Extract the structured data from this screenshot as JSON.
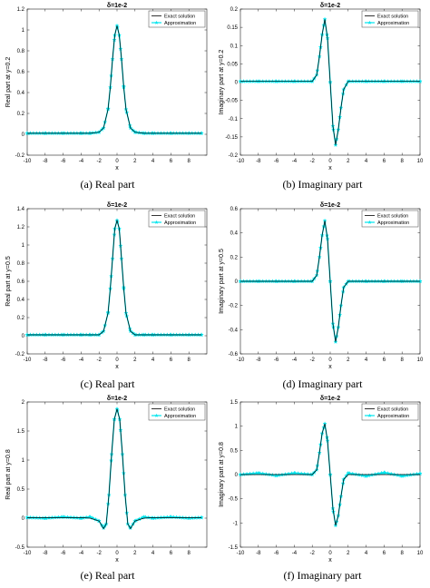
{
  "chart_data": [
    {
      "type": "line",
      "title": "δ=1e-2",
      "xlabel": "x",
      "ylabel": "Real part at y=0.2",
      "xlim": [
        -10,
        10
      ],
      "ylim": [
        -0.2,
        1.2
      ],
      "xticks": [
        -10,
        -8,
        -6,
        -4,
        -2,
        0,
        2,
        4,
        6,
        8
      ],
      "xtick_labels": [
        "-10",
        "-8",
        "-6",
        "-4",
        "-2",
        "0",
        "2",
        "4",
        "6",
        "8"
      ],
      "yticks": [
        -0.2,
        0,
        0.2,
        0.4,
        0.6,
        0.8,
        1,
        1.2
      ],
      "ytick_labels": [
        "-0.2",
        "0",
        "0.2",
        "0.4",
        "0.6",
        "0.8",
        "1",
        "1.2"
      ],
      "legend_position": "top-right",
      "series": [
        {
          "name": "Exact solution",
          "color": "#000000",
          "style": "solid",
          "x": [
            -10,
            -8,
            -6,
            -4,
            -3,
            -2,
            -1.5,
            -1,
            -0.75,
            -0.5,
            -0.25,
            0,
            0.25,
            0.5,
            0.75,
            1,
            1.5,
            2,
            3,
            4,
            6,
            8,
            9.4
          ],
          "y": [
            0.01,
            0.01,
            0.01,
            0.01,
            0.01,
            0.02,
            0.06,
            0.24,
            0.45,
            0.72,
            0.95,
            1.04,
            0.95,
            0.72,
            0.45,
            0.24,
            0.06,
            0.02,
            0.01,
            0.01,
            0.01,
            0.01,
            0.01
          ]
        },
        {
          "name": "Approximation",
          "color": "#00e5ee",
          "style": "solid-star",
          "x": [
            -10,
            -8,
            -6,
            -4,
            -3,
            -2,
            -1.5,
            -1,
            -0.75,
            -0.5,
            -0.25,
            0,
            0.25,
            0.5,
            0.75,
            1,
            1.5,
            2,
            3,
            4,
            6,
            8,
            9.4
          ],
          "y": [
            0.01,
            0.01,
            0.01,
            0.01,
            0.01,
            0.02,
            0.06,
            0.24,
            0.45,
            0.72,
            0.95,
            1.04,
            0.95,
            0.72,
            0.45,
            0.24,
            0.06,
            0.02,
            0.01,
            0.01,
            0.01,
            0.01,
            0.01
          ]
        }
      ],
      "caption": "(a) Real part"
    },
    {
      "type": "line",
      "title": "δ=1e-2",
      "xlabel": "x",
      "ylabel": "Imaginary part at y=0.2",
      "xlim": [
        -10,
        10
      ],
      "ylim": [
        -0.2,
        0.2
      ],
      "xticks": [
        -10,
        -8,
        -6,
        -4,
        -2,
        0,
        2,
        4,
        6,
        8,
        10
      ],
      "xtick_labels": [
        "-10",
        "-8",
        "-6",
        "-4",
        "-2",
        "0",
        "2",
        "4",
        "6",
        "8",
        "10"
      ],
      "yticks": [
        -0.2,
        -0.15,
        -0.1,
        -0.05,
        0,
        0.05,
        0.1,
        0.15,
        0.2
      ],
      "ytick_labels": [
        "-0.2",
        "-0.15",
        "-0.1",
        "-0.05",
        "0",
        "0.05",
        "0.1",
        "0.15",
        "0.2"
      ],
      "legend_position": "top-right",
      "series": [
        {
          "name": "Exact solution",
          "color": "#000000",
          "style": "solid",
          "x": [
            -10,
            -8,
            -6,
            -4,
            -2,
            -1.5,
            -1.2,
            -0.9,
            -0.6,
            -0.3,
            0,
            0.3,
            0.6,
            0.9,
            1.2,
            1.5,
            2,
            4,
            6,
            8,
            10
          ],
          "y": [
            0.002,
            0.002,
            0.002,
            0.002,
            0.002,
            0.02,
            0.07,
            0.13,
            0.172,
            0.12,
            0.0,
            -0.12,
            -0.172,
            -0.13,
            -0.07,
            -0.02,
            0.002,
            0.002,
            0.002,
            0.002,
            0.002
          ]
        },
        {
          "name": "Approximation",
          "color": "#00e5ee",
          "style": "solid-star",
          "x": [
            -10,
            -8,
            -6,
            -4,
            -2,
            -1.5,
            -1.2,
            -0.9,
            -0.6,
            -0.3,
            0,
            0.3,
            0.6,
            0.9,
            1.2,
            1.5,
            2,
            4,
            6,
            8,
            10
          ],
          "y": [
            0.002,
            0.002,
            0.002,
            0.002,
            0.002,
            0.02,
            0.07,
            0.13,
            0.172,
            0.12,
            0.0,
            -0.12,
            -0.172,
            -0.13,
            -0.07,
            -0.02,
            0.002,
            0.002,
            0.002,
            0.002,
            0.002
          ]
        }
      ],
      "caption": "(b) Imaginary part"
    },
    {
      "type": "line",
      "title": "δ=1e-2",
      "xlabel": "x",
      "ylabel": "Real part at y=0.5",
      "xlim": [
        -10,
        10
      ],
      "ylim": [
        -0.2,
        1.4
      ],
      "xticks": [
        -10,
        -8,
        -6,
        -4,
        -2,
        0,
        2,
        4,
        6,
        8
      ],
      "xtick_labels": [
        "-10",
        "-8",
        "-6",
        "-4",
        "-2",
        "0",
        "2",
        "4",
        "6",
        "8"
      ],
      "yticks": [
        -0.2,
        0,
        0.2,
        0.4,
        0.6,
        0.8,
        1,
        1.2,
        1.4
      ],
      "ytick_labels": [
        "-0.2",
        "0",
        "0.2",
        "0.4",
        "0.6",
        "0.8",
        "1",
        "1.2",
        "1.4"
      ],
      "legend_position": "top-right",
      "series": [
        {
          "name": "Exact solution",
          "color": "#000000",
          "style": "solid",
          "x": [
            -10,
            -8,
            -6,
            -4,
            -3,
            -2,
            -1.5,
            -1,
            -0.75,
            -0.5,
            -0.25,
            0,
            0.25,
            0.5,
            0.75,
            1,
            1.5,
            2,
            3,
            4,
            6,
            8,
            9.4
          ],
          "y": [
            0.01,
            0.01,
            0.01,
            0.01,
            0.01,
            0.01,
            0.05,
            0.25,
            0.52,
            0.85,
            1.18,
            1.27,
            1.18,
            0.85,
            0.52,
            0.25,
            0.05,
            0.01,
            0.01,
            0.01,
            0.01,
            0.01,
            0.01
          ]
        },
        {
          "name": "Approximation",
          "color": "#00e5ee",
          "style": "solid-star",
          "x": [
            -10,
            -8,
            -6,
            -4,
            -3,
            -2,
            -1.5,
            -1,
            -0.75,
            -0.5,
            -0.25,
            0,
            0.25,
            0.5,
            0.75,
            1,
            1.5,
            2,
            3,
            4,
            6,
            8,
            9.4
          ],
          "y": [
            0.01,
            0.01,
            0.01,
            0.01,
            0.01,
            0.01,
            0.05,
            0.25,
            0.52,
            0.85,
            1.18,
            1.27,
            1.18,
            0.85,
            0.52,
            0.25,
            0.05,
            0.01,
            0.01,
            0.01,
            0.01,
            0.01,
            0.01
          ]
        }
      ],
      "caption": "(c) Real part"
    },
    {
      "type": "line",
      "title": "δ=1e-2",
      "xlabel": "x",
      "ylabel": "Imaginary part at y=0.5",
      "xlim": [
        -10,
        10
      ],
      "ylim": [
        -0.6,
        0.6
      ],
      "xticks": [
        -10,
        -8,
        -6,
        -4,
        -2,
        0,
        2,
        4,
        6,
        8,
        10
      ],
      "xtick_labels": [
        "-10",
        "-8",
        "-6",
        "-4",
        "-2",
        "0",
        "2",
        "4",
        "6",
        "8",
        "10"
      ],
      "yticks": [
        -0.6,
        -0.4,
        -0.2,
        0,
        0.2,
        0.4,
        0.6
      ],
      "ytick_labels": [
        "-0.6",
        "-0.4",
        "-0.2",
        "0",
        "0.2",
        "0.4",
        "0.6"
      ],
      "legend_position": "top-right",
      "series": [
        {
          "name": "Exact solution",
          "color": "#000000",
          "style": "solid",
          "x": [
            -10,
            -8,
            -6,
            -4,
            -2,
            -1.5,
            -1.2,
            -0.9,
            -0.6,
            -0.3,
            0,
            0.3,
            0.6,
            0.9,
            1.2,
            1.5,
            2,
            4,
            6,
            8,
            10
          ],
          "y": [
            0.0,
            0.0,
            0.0,
            0.0,
            0.0,
            0.05,
            0.2,
            0.38,
            0.5,
            0.35,
            0.0,
            -0.35,
            -0.5,
            -0.38,
            -0.2,
            -0.05,
            0.0,
            0.0,
            0.0,
            0.0,
            0.0
          ]
        },
        {
          "name": "Approximation",
          "color": "#00e5ee",
          "style": "solid-star",
          "x": [
            -10,
            -8,
            -6,
            -4,
            -2,
            -1.5,
            -1.2,
            -0.9,
            -0.6,
            -0.3,
            0,
            0.3,
            0.6,
            0.9,
            1.2,
            1.5,
            2,
            4,
            6,
            8,
            10
          ],
          "y": [
            0.0,
            0.0,
            0.0,
            0.0,
            0.0,
            0.05,
            0.2,
            0.38,
            0.5,
            0.35,
            0.0,
            -0.35,
            -0.5,
            -0.38,
            -0.2,
            -0.05,
            0.0,
            0.0,
            0.0,
            0.0,
            0.0
          ]
        }
      ],
      "caption": "(d) Imaginary part"
    },
    {
      "type": "line",
      "title": "δ=1e-2",
      "xlabel": "x",
      "ylabel": "Real part at y=0.8",
      "xlim": [
        -10,
        10
      ],
      "ylim": [
        -0.5,
        2
      ],
      "xticks": [
        -10,
        -8,
        -6,
        -4,
        -2,
        0,
        2,
        4,
        6,
        8
      ],
      "xtick_labels": [
        "-10",
        "-8",
        "-6",
        "-4",
        "-2",
        "0",
        "2",
        "4",
        "6",
        "8"
      ],
      "yticks": [
        -0.5,
        0,
        0.5,
        1,
        1.5,
        2
      ],
      "ytick_labels": [
        "-0.5",
        "0",
        "0.5",
        "1",
        "1.5",
        "2"
      ],
      "legend_position": "top-right",
      "series": [
        {
          "name": "Exact solution",
          "color": "#000000",
          "style": "solid",
          "x": [
            -10,
            -8,
            -6,
            -4,
            -3,
            -2,
            -1.5,
            -1.2,
            -0.9,
            -0.6,
            -0.3,
            0,
            0.3,
            0.6,
            0.9,
            1.2,
            1.5,
            2,
            3,
            4,
            6,
            8,
            9.4
          ],
          "y": [
            0.01,
            0.01,
            0.01,
            0.01,
            0.0,
            -0.05,
            -0.18,
            -0.1,
            0.4,
            1.1,
            1.7,
            1.88,
            1.7,
            1.1,
            0.4,
            -0.1,
            -0.18,
            -0.05,
            0.0,
            0.01,
            0.01,
            0.01,
            0.01
          ]
        },
        {
          "name": "Approximation",
          "color": "#00e5ee",
          "style": "solid-star",
          "x": [
            -10,
            -8,
            -6,
            -4,
            -3,
            -2,
            -1.5,
            -1.2,
            -0.9,
            -0.6,
            -0.3,
            0,
            0.3,
            0.6,
            0.9,
            1.2,
            1.5,
            2,
            3,
            4,
            6,
            8,
            9.4
          ],
          "y": [
            0.01,
            0.0,
            0.02,
            0.0,
            0.02,
            -0.05,
            -0.17,
            -0.1,
            0.4,
            1.1,
            1.7,
            1.88,
            1.7,
            1.1,
            0.4,
            -0.1,
            -0.17,
            -0.05,
            0.02,
            0.0,
            0.02,
            0.0,
            0.01
          ]
        }
      ],
      "caption": "(e) Real part"
    },
    {
      "type": "line",
      "title": "δ=1e-2",
      "xlabel": "x",
      "ylabel": "Imaginary part at y=0.8",
      "xlim": [
        -10,
        10
      ],
      "ylim": [
        -1.5,
        1.5
      ],
      "xticks": [
        -10,
        -8,
        -6,
        -4,
        -2,
        0,
        2,
        4,
        6,
        8,
        10
      ],
      "xtick_labels": [
        "-10",
        "-8",
        "-6",
        "-4",
        "-2",
        "0",
        "2",
        "4",
        "6",
        "8",
        "10"
      ],
      "yticks": [
        -1.5,
        -1,
        -0.5,
        0,
        0.5,
        1,
        1.5
      ],
      "ytick_labels": [
        "-1.5",
        "-1",
        "-0.5",
        "0",
        "0.5",
        "1",
        "1.5"
      ],
      "legend_position": "top-right",
      "series": [
        {
          "name": "Exact solution",
          "color": "#000000",
          "style": "solid",
          "x": [
            -10,
            -8,
            -6,
            -4,
            -2,
            -1.5,
            -1.2,
            -0.9,
            -0.6,
            -0.3,
            0,
            0.3,
            0.6,
            0.9,
            1.2,
            1.5,
            2,
            4,
            6,
            8,
            10
          ],
          "y": [
            0.0,
            0.0,
            0.0,
            0.0,
            0.0,
            0.1,
            0.45,
            0.85,
            1.05,
            0.7,
            0.0,
            -0.7,
            -1.05,
            -0.85,
            -0.45,
            -0.1,
            0.0,
            0.0,
            0.0,
            0.0,
            0.0
          ]
        },
        {
          "name": "Approximation",
          "color": "#00e5ee",
          "style": "solid-star",
          "x": [
            -10,
            -8,
            -6,
            -4,
            -2,
            -1.5,
            -1.2,
            -0.9,
            -0.6,
            -0.3,
            0,
            0.3,
            0.6,
            0.9,
            1.2,
            1.5,
            2,
            4,
            6,
            8,
            10
          ],
          "y": [
            0.0,
            0.03,
            -0.02,
            0.03,
            0.0,
            0.1,
            0.45,
            0.85,
            1.05,
            0.7,
            0.0,
            -0.7,
            -1.05,
            -0.85,
            -0.45,
            -0.1,
            0.03,
            -0.03,
            0.04,
            -0.03,
            0.02
          ]
        }
      ],
      "caption": "(f) Imaginary part"
    }
  ]
}
